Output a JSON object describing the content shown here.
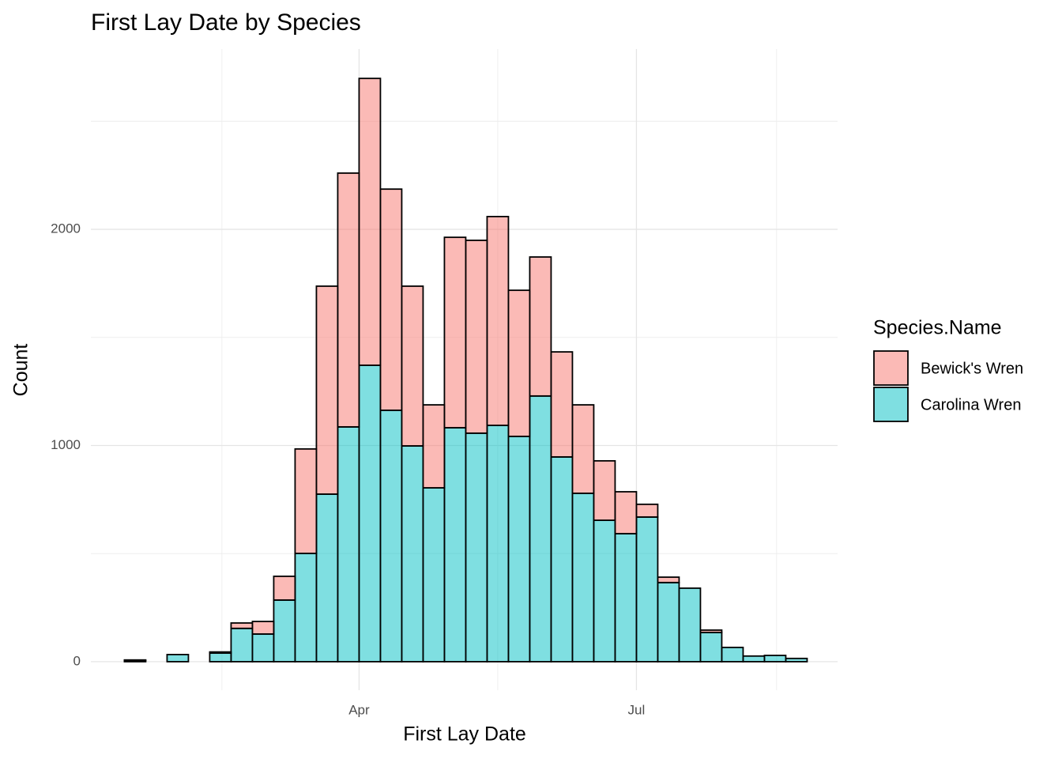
{
  "chart_data": {
    "type": "histogram",
    "title": "First Lay Date by Species",
    "xlabel": "First Lay Date",
    "ylabel": "Count",
    "legend_title": "Species.Name",
    "legend": "right",
    "grid": true,
    "bins": [
      14,
      21,
      28,
      35,
      42,
      49,
      56,
      63,
      70,
      77,
      84,
      91,
      98,
      105,
      112,
      119,
      126,
      133,
      140,
      147,
      154,
      161,
      168,
      175,
      182,
      189,
      196,
      203,
      210,
      217,
      224,
      231,
      238
    ],
    "series": [
      {
        "name": "Bewick's Wren",
        "color": "#F8766D",
        "values": [
          3,
          0,
          0,
          0,
          5,
          25,
          58,
          110,
          483,
          962,
          1174,
          1327,
          1023,
          739,
          384,
          881,
          892,
          966,
          676,
          643,
          486,
          409,
          275,
          194,
          59,
          25,
          0,
          11,
          0,
          0,
          0,
          0
        ]
      },
      {
        "name": "Carolina Wren",
        "color": "#00BFC4",
        "values": [
          5,
          0,
          33,
          0,
          40,
          154,
          128,
          285,
          501,
          775,
          1086,
          1371,
          1163,
          998,
          804,
          1082,
          1057,
          1093,
          1042,
          1229,
          947,
          779,
          654,
          592,
          669,
          366,
          340,
          135,
          66,
          26,
          29,
          15
        ]
      }
    ],
    "opacity": 0.5,
    "xlim": [
      3,
      248
    ],
    "xticks": [
      {
        "value": 91,
        "label": "Apr"
      },
      {
        "value": 182,
        "label": "Jul"
      }
    ],
    "xminor": [
      46,
      136.5,
      228
    ],
    "ylim": [
      -132,
      2834
    ],
    "yticks": [
      0,
      1000,
      2000
    ],
    "yminor": [
      500,
      1500,
      2500
    ]
  }
}
